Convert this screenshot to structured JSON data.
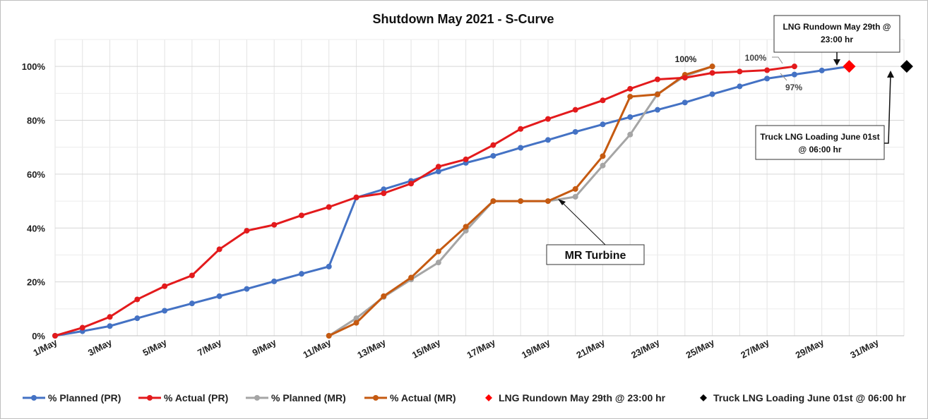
{
  "chart_data": {
    "type": "line",
    "title": "Shutdown May 2021 - S-Curve",
    "xlabel": "",
    "ylabel": "",
    "x_ticks": [
      "1/May",
      "3/May",
      "5/May",
      "7/May",
      "9/May",
      "11/May",
      "13/May",
      "15/May",
      "17/May",
      "19/May",
      "21/May",
      "23/May",
      "25/May",
      "27/May",
      "29/May",
      "31/May"
    ],
    "xlim": [
      1,
      32
    ],
    "ylim": [
      0,
      110
    ],
    "y_ticks": [
      0,
      20,
      40,
      60,
      80,
      100
    ],
    "y_tick_suffix": "%",
    "grid": true,
    "legend_position": "bottom",
    "series": [
      {
        "name": "% Planned (PR)",
        "color": "#4472C4",
        "x": [
          1,
          2,
          3,
          4,
          5,
          6,
          7,
          8,
          9,
          10,
          11,
          12,
          13,
          14,
          15,
          16,
          17,
          18,
          19,
          20,
          21,
          22,
          23,
          24,
          25,
          26,
          27,
          28,
          29,
          30
        ],
        "values": [
          0,
          1.7,
          3.6,
          6.5,
          9.3,
          12,
          14.7,
          17.4,
          20.2,
          23,
          25.7,
          51.3,
          54.4,
          57.5,
          61,
          64.2,
          66.8,
          69.8,
          72.7,
          75.7,
          78.5,
          81.2,
          83.9,
          86.6,
          89.7,
          92.6,
          95.5,
          97,
          98.5,
          100
        ]
      },
      {
        "name": "% Actual (PR)",
        "color": "#E31A1C",
        "x": [
          1,
          2,
          3,
          4,
          5,
          6,
          7,
          8,
          9,
          10,
          11,
          12,
          13,
          14,
          15,
          16,
          17,
          18,
          19,
          20,
          21,
          22,
          23,
          24,
          25,
          26,
          27,
          28
        ],
        "values": [
          0,
          3,
          7,
          13.5,
          18.4,
          22.4,
          32.1,
          39,
          41.2,
          44.7,
          47.8,
          51.4,
          52.9,
          56.5,
          62.8,
          65.5,
          70.8,
          76.8,
          80.5,
          83.9,
          87.4,
          91.7,
          95.2,
          95.8,
          97.6,
          98.1,
          98.6,
          100
        ]
      },
      {
        "name": "% Planned (MR)",
        "color": "#A5A5A5",
        "x": [
          11,
          12,
          13,
          14,
          15,
          16,
          17,
          18,
          19,
          20,
          21,
          22,
          23,
          24,
          25
        ],
        "values": [
          0,
          6.5,
          14.4,
          20.9,
          27.2,
          39,
          50,
          50,
          50,
          51.6,
          63.2,
          74.7,
          89.8,
          96.4,
          100
        ]
      },
      {
        "name": "% Actual (MR)",
        "color": "#C55A11",
        "x": [
          11,
          12,
          13,
          14,
          15,
          16,
          17,
          18,
          19,
          20,
          21,
          22,
          23,
          24,
          25
        ],
        "values": [
          0,
          4.8,
          14.7,
          21.6,
          31.3,
          40.5,
          50,
          50,
          50,
          54.5,
          66.7,
          88.8,
          89.6,
          96.9,
          100
        ]
      }
    ],
    "markers": [
      {
        "name": "LNG Rundown May 29th @ 23:00 hr",
        "color": "#FF0000",
        "x": 30,
        "value": 100
      },
      {
        "name": "Truck LNG Loading June 01st @ 06:00 hr",
        "color": "#000000",
        "x": 32.1,
        "value": 100
      }
    ],
    "annotations": {
      "mr_final": "100%",
      "pr_actual_final": "100%",
      "pr_planned_label": "97%",
      "lng_callout_line1": "LNG Rundown May 29th @",
      "lng_callout_line2": "23:00 hr",
      "truck_callout_line1": "Truck LNG Loading June 01st",
      "truck_callout_line2": "@ 06:00 hr",
      "mr_turbine": "MR Turbine"
    }
  }
}
